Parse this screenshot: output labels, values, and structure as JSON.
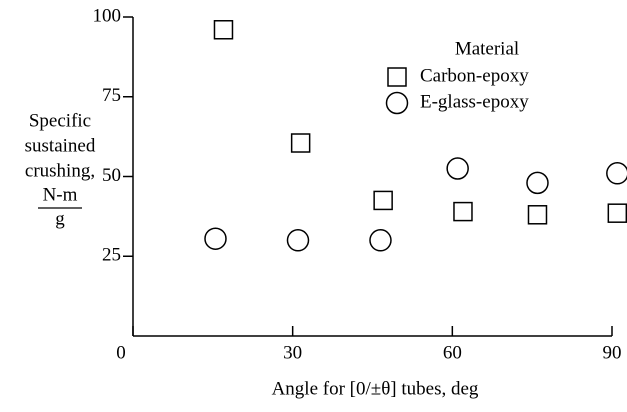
{
  "chart_data": {
    "type": "scatter",
    "y_label_lines": [
      "Specific",
      "sustained",
      "crushing,"
    ],
    "y_label_fraction": [
      "N-m",
      "g"
    ],
    "x_label": "Angle for [0/±θ] tubes, deg",
    "legend_title": "Material",
    "xlim": [
      0,
      90
    ],
    "xticks": [
      0,
      30,
      60,
      90
    ],
    "ylim": [
      0,
      100
    ],
    "yticks": [
      25,
      50,
      75,
      100
    ],
    "series": [
      {
        "name": "Carbon-epoxy",
        "marker": "square",
        "color": "#000000",
        "x": [
          17,
          31.5,
          47,
          62,
          76,
          91
        ],
        "values": [
          96,
          60.5,
          42.5,
          39,
          38,
          38.5
        ]
      },
      {
        "name": "E-glass-epoxy",
        "marker": "circle",
        "color": "#000000",
        "x": [
          15.5,
          31,
          46.5,
          61,
          76,
          91
        ],
        "values": [
          30.5,
          30,
          30,
          52.5,
          48,
          51
        ]
      }
    ]
  }
}
